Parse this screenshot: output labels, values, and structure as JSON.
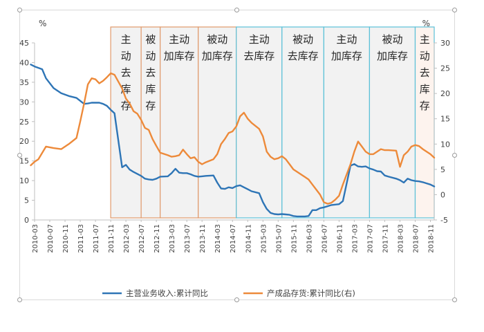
{
  "chart_data": {
    "type": "line",
    "left_unit": "%",
    "right_unit": "%",
    "ylim_left": [
      0,
      45
    ],
    "yticks_left": [
      0,
      5,
      10,
      15,
      20,
      25,
      30,
      35,
      40,
      45
    ],
    "ylim_right": [
      -5,
      30
    ],
    "yticks_right": [
      -5,
      0,
      5,
      10,
      15,
      20,
      25,
      30
    ],
    "x_start": "2010-03",
    "x_end": "2018-12",
    "xtick_labels": [
      "2010-03",
      "2010-07",
      "2010-11",
      "2011-03",
      "2011-07",
      "2011-11",
      "2012-03",
      "2012-07",
      "2012-11",
      "2013-03",
      "2013-07",
      "2013-11",
      "2014-03",
      "2014-07",
      "2014-11",
      "2015-03",
      "2015-07",
      "2015-11",
      "2016-03",
      "2016-07",
      "2016-11",
      "2017-03",
      "2017-07",
      "2017-11",
      "2018-03",
      "2018-07",
      "2018-11"
    ],
    "grid": false,
    "legend_position": "bottom",
    "series": [
      {
        "name": "主营业务收入:累计同比",
        "axis": "left",
        "color": "#2e75b6",
        "x": [
          "2010-02",
          "2010-03",
          "2010-05",
          "2010-06",
          "2010-08",
          "2010-10",
          "2010-12",
          "2011-02",
          "2011-04",
          "2011-05",
          "2011-06",
          "2011-07",
          "2011-08",
          "2011-09",
          "2011-10",
          "2011-11",
          "2011-12",
          "2012-02",
          "2012-03",
          "2012-04",
          "2012-05",
          "2012-07",
          "2012-08",
          "2012-09",
          "2012-10",
          "2012-11",
          "2012-12",
          "2013-02",
          "2013-03",
          "2013-04",
          "2013-05",
          "2013-06",
          "2013-07",
          "2013-08",
          "2013-09",
          "2013-10",
          "2013-11",
          "2013-12",
          "2014-02",
          "2014-03",
          "2014-04",
          "2014-05",
          "2014-06",
          "2014-07",
          "2014-08",
          "2014-09",
          "2014-10",
          "2014-11",
          "2014-12",
          "2015-02",
          "2015-03",
          "2015-04",
          "2015-05",
          "2015-06",
          "2015-07",
          "2015-08",
          "2015-09",
          "2015-10",
          "2015-11",
          "2015-12",
          "2016-02",
          "2016-03",
          "2016-04",
          "2016-05",
          "2016-06",
          "2016-07",
          "2016-08",
          "2016-09",
          "2016-10",
          "2016-11",
          "2016-12",
          "2017-02",
          "2017-03",
          "2017-04",
          "2017-05",
          "2017-06",
          "2017-07",
          "2017-08",
          "2017-09",
          "2017-10",
          "2017-11",
          "2017-12",
          "2018-02",
          "2018-03",
          "2018-04",
          "2018-05",
          "2018-06",
          "2018-07",
          "2018-08",
          "2018-09",
          "2018-10",
          "2018-11",
          "2018-12"
        ],
        "values": [
          39.5,
          39.0,
          38.3,
          36.0,
          33.5,
          32.2,
          31.5,
          31.0,
          29.5,
          29.6,
          29.8,
          29.8,
          29.8,
          29.5,
          29.0,
          28.0,
          27.1,
          13.4,
          14.0,
          12.8,
          12.2,
          11.2,
          10.5,
          10.3,
          10.2,
          10.5,
          11.0,
          11.1,
          11.9,
          13.0,
          12.0,
          11.9,
          11.9,
          11.6,
          11.2,
          11.0,
          11.1,
          11.2,
          11.3,
          9.5,
          8.0,
          7.9,
          8.3,
          8.1,
          8.6,
          8.8,
          8.3,
          7.8,
          7.3,
          6.8,
          4.5,
          2.8,
          1.8,
          1.5,
          1.4,
          1.5,
          1.4,
          1.3,
          1.0,
          0.9,
          0.9,
          1.0,
          2.5,
          2.5,
          3.0,
          3.2,
          3.5,
          3.8,
          3.9,
          4.0,
          4.8,
          13.8,
          14.2,
          13.6,
          13.5,
          13.6,
          13.1,
          12.8,
          12.4,
          12.3,
          11.3,
          11.0,
          10.5,
          10.1,
          9.5,
          10.5,
          10.1,
          9.9,
          9.8,
          9.6,
          9.3,
          9.0,
          8.5
        ]
      },
      {
        "name": "产成品存货:累计同比(右)",
        "axis": "right",
        "color": "#ed8a3a",
        "x": [
          "2010-02",
          "2010-03",
          "2010-04",
          "2010-06",
          "2010-08",
          "2010-10",
          "2010-12",
          "2011-02",
          "2011-03",
          "2011-04",
          "2011-05",
          "2011-06",
          "2011-07",
          "2011-08",
          "2011-09",
          "2011-10",
          "2011-11",
          "2011-12",
          "2012-02",
          "2012-03",
          "2012-04",
          "2012-05",
          "2012-06",
          "2012-07",
          "2012-08",
          "2012-09",
          "2012-10",
          "2012-11",
          "2012-12",
          "2013-02",
          "2013-03",
          "2013-04",
          "2013-05",
          "2013-06",
          "2013-07",
          "2013-08",
          "2013-09",
          "2013-10",
          "2013-11",
          "2013-12",
          "2014-02",
          "2014-03",
          "2014-04",
          "2014-05",
          "2014-06",
          "2014-07",
          "2014-08",
          "2014-09",
          "2014-10",
          "2014-11",
          "2014-12",
          "2015-02",
          "2015-03",
          "2015-04",
          "2015-05",
          "2015-06",
          "2015-07",
          "2015-08",
          "2015-09",
          "2015-10",
          "2015-11",
          "2015-12",
          "2016-02",
          "2016-03",
          "2016-04",
          "2016-05",
          "2016-06",
          "2016-07",
          "2016-08",
          "2016-09",
          "2016-10",
          "2016-11",
          "2016-12",
          "2017-02",
          "2017-03",
          "2017-04",
          "2017-05",
          "2017-06",
          "2017-07",
          "2017-08",
          "2017-09",
          "2017-10",
          "2017-11",
          "2017-12",
          "2018-02",
          "2018-03",
          "2018-04",
          "2018-05",
          "2018-06",
          "2018-07",
          "2018-08",
          "2018-09",
          "2018-10",
          "2018-11",
          "2018-12"
        ],
        "values": [
          5.8,
          6.5,
          7.0,
          9.5,
          9.2,
          9.0,
          10.0,
          11.2,
          14.5,
          18.0,
          21.8,
          23.0,
          22.8,
          22.0,
          22.5,
          23.2,
          24.0,
          23.7,
          21.0,
          19.0,
          18.0,
          16.5,
          16.0,
          14.8,
          13.2,
          12.8,
          11.0,
          9.6,
          8.3,
          7.8,
          7.5,
          7.6,
          7.8,
          8.9,
          8.0,
          7.2,
          7.4,
          6.5,
          6.0,
          6.4,
          7.0,
          8.0,
          10.0,
          11.0,
          12.2,
          12.5,
          13.5,
          15.5,
          16.2,
          15.0,
          14.2,
          13.0,
          11.5,
          8.5,
          7.5,
          7.0,
          7.2,
          7.6,
          7.0,
          6.0,
          5.0,
          4.5,
          3.5,
          3.0,
          2.0,
          1.0,
          0.0,
          -1.5,
          -1.8,
          -1.6,
          -1.0,
          -0.2,
          2.0,
          6.0,
          8.5,
          10.5,
          9.5,
          8.5,
          8.0,
          8.0,
          8.5,
          9.0,
          8.8,
          8.8,
          8.7,
          5.5,
          7.8,
          8.5,
          9.5,
          9.8,
          9.6,
          9.0,
          8.5,
          8.0,
          7.3
        ]
      }
    ],
    "phases": [
      {
        "label": "主动去库存",
        "start": "2011-11",
        "end": "2012-07",
        "border": "#e0996a",
        "fill": "#f2f2f2"
      },
      {
        "label": "被动去库存",
        "start": "2012-07",
        "end": "2012-12",
        "border": "#e0996a",
        "fill": "#f2f2f2"
      },
      {
        "label": "主动加库存",
        "start": "2012-12",
        "end": "2013-10",
        "border": "#e0996a",
        "fill": "#f2f2f2"
      },
      {
        "label": "被动加库存",
        "start": "2013-10",
        "end": "2014-08",
        "border": "#e0996a",
        "fill": "#f2f2f2"
      },
      {
        "label": "主动去库存",
        "start": "2014-08",
        "end": "2015-08",
        "border": "#5bc0d8",
        "fill": "#f2f2f2"
      },
      {
        "label": "被动去库存",
        "start": "2015-08",
        "end": "2016-07",
        "border": "#5bc0d8",
        "fill": "#f2f2f2"
      },
      {
        "label": "主动加库存",
        "start": "2016-07",
        "end": "2017-07",
        "border": "#5bc0d8",
        "fill": "#f2f2f2"
      },
      {
        "label": "被动加库存",
        "start": "2017-07",
        "end": "2018-07",
        "border": "#5bc0d8",
        "fill": "#f2f2f2"
      },
      {
        "label": "主动去库存",
        "start": "2018-07",
        "end": "2018-12",
        "border": "#5bc0d8",
        "fill": "#fdf3ee"
      }
    ]
  }
}
